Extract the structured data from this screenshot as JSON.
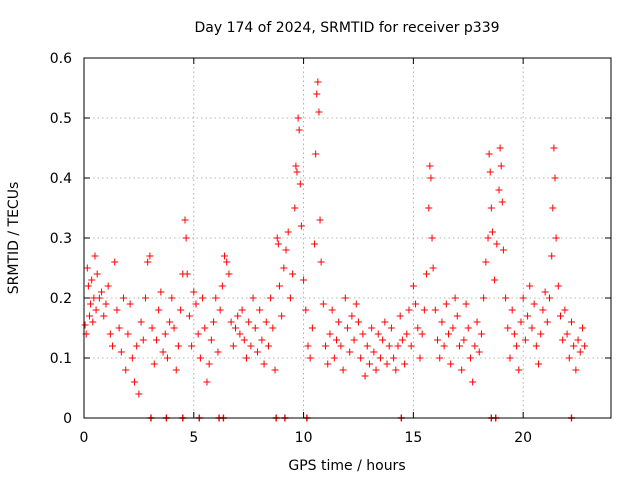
{
  "chart_data": {
    "type": "scatter",
    "title": "Day 174 of 2024, SRMTID for receiver p339",
    "xlabel": "GPS time / hours",
    "ylabel": "SRMTID / TECUs",
    "xlim": [
      0,
      24
    ],
    "ylim": [
      0,
      0.6
    ],
    "xticks": [
      0,
      5,
      10,
      15,
      20
    ],
    "xtick_labels": [
      "0",
      "5",
      "10",
      "15",
      "20"
    ],
    "yticks": [
      0,
      0.1,
      0.2,
      0.3,
      0.4,
      0.5,
      0.6
    ],
    "ytick_labels": [
      "0",
      "0.1",
      "0.2",
      "0.3",
      "0.4",
      "0.5",
      "0.6"
    ],
    "grid": true,
    "marker": "+",
    "color": "#ff0000",
    "series": [
      {
        "name": "SRMTID",
        "points": [
          [
            0.05,
            0.155
          ],
          [
            0.1,
            0.14
          ],
          [
            0.15,
            0.25
          ],
          [
            0.2,
            0.22
          ],
          [
            0.25,
            0.17
          ],
          [
            0.3,
            0.19
          ],
          [
            0.35,
            0.23
          ],
          [
            0.4,
            0.16
          ],
          [
            0.45,
            0.2
          ],
          [
            0.5,
            0.27
          ],
          [
            0.55,
            0.18
          ],
          [
            0.6,
            0.24
          ],
          [
            0.7,
            0.2
          ],
          [
            0.8,
            0.21
          ],
          [
            0.9,
            0.17
          ],
          [
            1.0,
            0.19
          ],
          [
            1.1,
            0.22
          ],
          [
            1.2,
            0.14
          ],
          [
            1.3,
            0.12
          ],
          [
            1.4,
            0.26
          ],
          [
            1.5,
            0.18
          ],
          [
            1.6,
            0.15
          ],
          [
            1.7,
            0.11
          ],
          [
            1.8,
            0.2
          ],
          [
            1.9,
            0.08
          ],
          [
            2.0,
            0.14
          ],
          [
            2.1,
            0.19
          ],
          [
            2.2,
            0.1
          ],
          [
            2.3,
            0.06
          ],
          [
            2.4,
            0.12
          ],
          [
            2.5,
            0.04
          ],
          [
            2.6,
            0.16
          ],
          [
            2.7,
            0.13
          ],
          [
            2.8,
            0.2
          ],
          [
            2.9,
            0.26
          ],
          [
            3.0,
            0.27
          ],
          [
            3.1,
            0.15
          ],
          [
            3.2,
            0.09
          ],
          [
            3.3,
            0.13
          ],
          [
            3.4,
            0.18
          ],
          [
            3.5,
            0.21
          ],
          [
            3.6,
            0.11
          ],
          [
            3.7,
            0.14
          ],
          [
            3.8,
            0.1
          ],
          [
            3.9,
            0.16
          ],
          [
            4.0,
            0.2
          ],
          [
            4.1,
            0.15
          ],
          [
            4.2,
            0.08
          ],
          [
            4.3,
            0.12
          ],
          [
            4.4,
            0.18
          ],
          [
            4.5,
            0.24
          ],
          [
            4.6,
            0.33
          ],
          [
            4.65,
            0.3
          ],
          [
            4.7,
            0.24
          ],
          [
            4.8,
            0.17
          ],
          [
            4.9,
            0.12
          ],
          [
            5.0,
            0.21
          ],
          [
            5.1,
            0.19
          ],
          [
            5.2,
            0.14
          ],
          [
            5.3,
            0.1
          ],
          [
            5.4,
            0.2
          ],
          [
            5.5,
            0.15
          ],
          [
            5.6,
            0.06
          ],
          [
            5.7,
            0.09
          ],
          [
            5.8,
            0.13
          ],
          [
            5.9,
            0.16
          ],
          [
            6.0,
            0.2
          ],
          [
            6.1,
            0.11
          ],
          [
            6.2,
            0.18
          ],
          [
            6.3,
            0.22
          ],
          [
            6.4,
            0.27
          ],
          [
            6.5,
            0.26
          ],
          [
            6.6,
            0.24
          ],
          [
            6.7,
            0.16
          ],
          [
            6.8,
            0.12
          ],
          [
            6.9,
            0.15
          ],
          [
            7.0,
            0.17
          ],
          [
            7.1,
            0.14
          ],
          [
            7.2,
            0.18
          ],
          [
            7.3,
            0.13
          ],
          [
            7.4,
            0.1
          ],
          [
            7.5,
            0.16
          ],
          [
            7.6,
            0.12
          ],
          [
            7.7,
            0.2
          ],
          [
            7.8,
            0.15
          ],
          [
            7.9,
            0.11
          ],
          [
            8.0,
            0.18
          ],
          [
            8.1,
            0.13
          ],
          [
            8.2,
            0.09
          ],
          [
            8.3,
            0.16
          ],
          [
            8.4,
            0.12
          ],
          [
            8.5,
            0.2
          ],
          [
            8.6,
            0.15
          ],
          [
            8.7,
            0.08
          ],
          [
            8.8,
            0.3
          ],
          [
            8.85,
            0.29
          ],
          [
            8.9,
            0.22
          ],
          [
            9.0,
            0.17
          ],
          [
            9.1,
            0.25
          ],
          [
            9.2,
            0.28
          ],
          [
            9.3,
            0.31
          ],
          [
            9.4,
            0.2
          ],
          [
            9.5,
            0.24
          ],
          [
            9.6,
            0.35
          ],
          [
            9.65,
            0.42
          ],
          [
            9.7,
            0.41
          ],
          [
            9.75,
            0.5
          ],
          [
            9.8,
            0.48
          ],
          [
            9.85,
            0.39
          ],
          [
            9.9,
            0.32
          ],
          [
            10.0,
            0.23
          ],
          [
            10.1,
            0.18
          ],
          [
            10.2,
            0.12
          ],
          [
            10.3,
            0.1
          ],
          [
            10.4,
            0.15
          ],
          [
            10.5,
            0.29
          ],
          [
            10.55,
            0.44
          ],
          [
            10.6,
            0.54
          ],
          [
            10.65,
            0.56
          ],
          [
            10.7,
            0.51
          ],
          [
            10.75,
            0.33
          ],
          [
            10.8,
            0.26
          ],
          [
            10.9,
            0.19
          ],
          [
            11.0,
            0.12
          ],
          [
            11.1,
            0.09
          ],
          [
            11.2,
            0.14
          ],
          [
            11.3,
            0.18
          ],
          [
            11.4,
            0.1
          ],
          [
            11.5,
            0.13
          ],
          [
            11.6,
            0.16
          ],
          [
            11.7,
            0.12
          ],
          [
            11.8,
            0.08
          ],
          [
            11.9,
            0.2
          ],
          [
            12.0,
            0.15
          ],
          [
            12.1,
            0.11
          ],
          [
            12.2,
            0.17
          ],
          [
            12.3,
            0.13
          ],
          [
            12.4,
            0.19
          ],
          [
            12.5,
            0.16
          ],
          [
            12.6,
            0.1
          ],
          [
            12.7,
            0.14
          ],
          [
            12.8,
            0.07
          ],
          [
            12.9,
            0.12
          ],
          [
            13.0,
            0.09
          ],
          [
            13.1,
            0.15
          ],
          [
            13.2,
            0.11
          ],
          [
            13.3,
            0.08
          ],
          [
            13.4,
            0.14
          ],
          [
            13.5,
            0.1
          ],
          [
            13.6,
            0.13
          ],
          [
            13.7,
            0.16
          ],
          [
            13.8,
            0.09
          ],
          [
            13.9,
            0.12
          ],
          [
            14.0,
            0.15
          ],
          [
            14.1,
            0.1
          ],
          [
            14.2,
            0.08
          ],
          [
            14.3,
            0.12
          ],
          [
            14.4,
            0.17
          ],
          [
            14.5,
            0.13
          ],
          [
            14.6,
            0.09
          ],
          [
            14.7,
            0.14
          ],
          [
            14.8,
            0.18
          ],
          [
            14.9,
            0.12
          ],
          [
            15.0,
            0.22
          ],
          [
            15.1,
            0.19
          ],
          [
            15.2,
            0.15
          ],
          [
            15.3,
            0.1
          ],
          [
            15.4,
            0.14
          ],
          [
            15.5,
            0.18
          ],
          [
            15.6,
            0.24
          ],
          [
            15.7,
            0.35
          ],
          [
            15.75,
            0.42
          ],
          [
            15.8,
            0.4
          ],
          [
            15.85,
            0.3
          ],
          [
            15.9,
            0.25
          ],
          [
            16.0,
            0.18
          ],
          [
            16.1,
            0.13
          ],
          [
            16.2,
            0.1
          ],
          [
            16.3,
            0.16
          ],
          [
            16.4,
            0.12
          ],
          [
            16.5,
            0.19
          ],
          [
            16.6,
            0.14
          ],
          [
            16.7,
            0.09
          ],
          [
            16.8,
            0.15
          ],
          [
            16.9,
            0.2
          ],
          [
            17.0,
            0.17
          ],
          [
            17.1,
            0.12
          ],
          [
            17.2,
            0.08
          ],
          [
            17.3,
            0.13
          ],
          [
            17.4,
            0.19
          ],
          [
            17.5,
            0.15
          ],
          [
            17.6,
            0.1
          ],
          [
            17.7,
            0.06
          ],
          [
            17.8,
            0.12
          ],
          [
            17.9,
            0.16
          ],
          [
            18.0,
            0.11
          ],
          [
            18.1,
            0.14
          ],
          [
            18.2,
            0.2
          ],
          [
            18.3,
            0.26
          ],
          [
            18.4,
            0.3
          ],
          [
            18.45,
            0.44
          ],
          [
            18.5,
            0.41
          ],
          [
            18.55,
            0.35
          ],
          [
            18.6,
            0.31
          ],
          [
            18.7,
            0.23
          ],
          [
            18.8,
            0.29
          ],
          [
            18.9,
            0.38
          ],
          [
            18.95,
            0.45
          ],
          [
            19.0,
            0.42
          ],
          [
            19.05,
            0.36
          ],
          [
            19.1,
            0.28
          ],
          [
            19.2,
            0.2
          ],
          [
            19.3,
            0.15
          ],
          [
            19.4,
            0.1
          ],
          [
            19.5,
            0.18
          ],
          [
            19.6,
            0.14
          ],
          [
            19.7,
            0.12
          ],
          [
            19.8,
            0.08
          ],
          [
            19.9,
            0.16
          ],
          [
            20.0,
            0.2
          ],
          [
            20.1,
            0.13
          ],
          [
            20.2,
            0.17
          ],
          [
            20.3,
            0.22
          ],
          [
            20.4,
            0.15
          ],
          [
            20.5,
            0.19
          ],
          [
            20.6,
            0.12
          ],
          [
            20.7,
            0.09
          ],
          [
            20.8,
            0.14
          ],
          [
            20.9,
            0.18
          ],
          [
            21.0,
            0.21
          ],
          [
            21.1,
            0.16
          ],
          [
            21.2,
            0.2
          ],
          [
            21.3,
            0.27
          ],
          [
            21.35,
            0.35
          ],
          [
            21.4,
            0.45
          ],
          [
            21.45,
            0.4
          ],
          [
            21.5,
            0.3
          ],
          [
            21.6,
            0.22
          ],
          [
            21.7,
            0.17
          ],
          [
            21.8,
            0.13
          ],
          [
            21.9,
            0.18
          ],
          [
            22.0,
            0.14
          ],
          [
            22.1,
            0.1
          ],
          [
            22.2,
            0.16
          ],
          [
            22.3,
            0.12
          ],
          [
            22.4,
            0.08
          ],
          [
            22.5,
            0.13
          ],
          [
            22.6,
            0.11
          ],
          [
            22.7,
            0.15
          ],
          [
            22.8,
            0.12
          ]
        ]
      }
    ],
    "zero_markers_x": [
      3.05,
      3.75,
      4.5,
      5.25,
      6.15,
      6.35,
      8.75,
      9.15,
      10.15,
      14.45,
      18.55,
      18.75,
      22.2
    ]
  }
}
